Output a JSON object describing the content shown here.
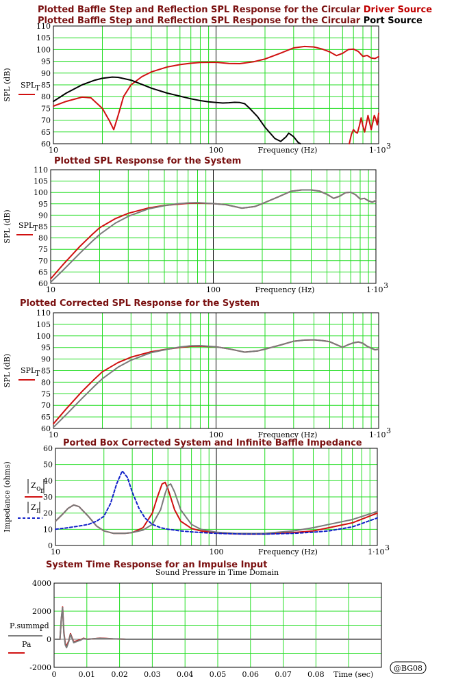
{
  "chart_data": [
    {
      "type": "line",
      "title_parts": [
        {
          "text": "Plotted Baffle Step and Reflection SPL Response for the Circular ",
          "color": "#7a1010"
        },
        {
          "text": "Driver Source",
          "color": "#c00000"
        }
      ],
      "title2_parts": [
        {
          "text": "Plotted Baffle Step and Reflection SPL Response for the Circular ",
          "color": "#7a1010"
        },
        {
          "text": "Port Source",
          "color": "#000000"
        }
      ],
      "xlabel": "Frequency (Hz)",
      "ylabel": "SPL (dB)",
      "legend_label": "SPL",
      "legend_sub": "T",
      "xscale": "log",
      "xlim": [
        10,
        1000
      ],
      "ylim": [
        60,
        110
      ],
      "yticks": [
        60,
        65,
        70,
        75,
        80,
        85,
        90,
        95,
        100,
        105,
        110
      ],
      "xtick_labels": [
        "10",
        "100",
        "1·10"
      ],
      "grid": true,
      "series": [
        {
          "color": "#d01010",
          "x": [
            10,
            12,
            15,
            17,
            20,
            22,
            23.5,
            25,
            27,
            30,
            35,
            40,
            50,
            60,
            70,
            80,
            100,
            120,
            140,
            170,
            200,
            250,
            300,
            350,
            400,
            450,
            500,
            550,
            600,
            650,
            700,
            750,
            800,
            850,
            900,
            950,
            1000
          ],
          "y": [
            76,
            78,
            79.8,
            79.5,
            75,
            70,
            66,
            72,
            80,
            85,
            88.5,
            90.5,
            92.6,
            93.6,
            94.2,
            94.5,
            94.6,
            94.1,
            94,
            94.8,
            96,
            98.5,
            100.7,
            101.3,
            101.1,
            100.2,
            99,
            97.4,
            98.4,
            100,
            100.2,
            99.2,
            97.1,
            97.5,
            96.4,
            96.2,
            97
          ]
        },
        {
          "color": "#000000",
          "x": [
            10,
            12,
            15,
            18,
            20,
            23,
            25,
            30,
            35,
            40,
            50,
            60,
            70,
            80,
            90,
            100,
            110,
            120,
            130,
            140,
            150,
            160,
            180,
            200,
            230,
            250,
            270,
            280,
            300,
            320,
            330
          ],
          "y": [
            78,
            81.5,
            85,
            87,
            87.8,
            88.3,
            88.2,
            87,
            85.2,
            83.6,
            81.5,
            80.2,
            79.1,
            78.3,
            77.8,
            77.5,
            77.3,
            77.4,
            77.6,
            77.5,
            77,
            75.2,
            71.5,
            67,
            62.2,
            61,
            63,
            64.5,
            63,
            60.5,
            60
          ]
        },
        {
          "color": "#d01010",
          "x": [
            660,
            680,
            700,
            720,
            740,
            760,
            780,
            800,
            820,
            840,
            860,
            880,
            900,
            920,
            940,
            960,
            980,
            1000
          ],
          "y": [
            60,
            64,
            66,
            65,
            64.5,
            67.5,
            71,
            67.5,
            65,
            68.5,
            72,
            69,
            66,
            69,
            72,
            70.5,
            68,
            73
          ]
        }
      ]
    },
    {
      "type": "line",
      "title": "Plotted SPL Response for the System",
      "xlabel": "Frequency (Hz)",
      "ylabel": "SPL (dB)",
      "legend_label": "SPL",
      "legend_sub": "T",
      "xscale": "log",
      "xlim": [
        10,
        1000
      ],
      "ylim": [
        60,
        110
      ],
      "yticks": [
        60,
        65,
        70,
        75,
        80,
        85,
        90,
        95,
        100,
        105,
        110
      ],
      "xtick_labels": [
        "10",
        "100",
        "1·10"
      ],
      "grid": true,
      "series": [
        {
          "color": "#d01010",
          "x": [
            10,
            12,
            15,
            18,
            20,
            25,
            30,
            40,
            50,
            60,
            70,
            80,
            100,
            120,
            150,
            180,
            200,
            250,
            300,
            350,
            400,
            450,
            500,
            550,
            600,
            650,
            700,
            750,
            800,
            850,
            900,
            950,
            1000
          ],
          "y": [
            62,
            68.5,
            76,
            81.5,
            84.5,
            88.5,
            90.8,
            93.2,
            94.3,
            94.8,
            95.2,
            95.3,
            95.1,
            94.6,
            93.1,
            93.8,
            95.1,
            98,
            100.5,
            101.1,
            101.1,
            100.6,
            99.2,
            97.4,
            98.4,
            99.9,
            100.1,
            99,
            97.1,
            97.4,
            96.3,
            95.7,
            96.5
          ]
        },
        {
          "color": "#7a7a7a",
          "x": [
            10,
            12,
            15,
            18,
            20,
            25,
            30,
            40,
            50,
            60,
            70,
            80,
            100,
            120,
            150,
            180,
            200,
            250,
            300,
            350,
            400,
            450,
            500,
            550,
            600,
            650,
            700,
            750,
            800,
            850,
            900,
            950,
            1000
          ],
          "y": [
            60.5,
            66,
            73,
            78.5,
            81.5,
            86.5,
            89.5,
            92.8,
            94.2,
            95,
            95.4,
            95.5,
            95.1,
            94.6,
            93.1,
            93.8,
            95.1,
            98,
            100.5,
            101.1,
            101.1,
            100.6,
            99.2,
            97.4,
            98.4,
            99.9,
            100.1,
            99,
            97.1,
            97.4,
            96.3,
            95.7,
            96.5
          ]
        }
      ]
    },
    {
      "type": "line",
      "title": "Plotted Corrected SPL Response for the System",
      "xlabel": "Frequency (Hz)",
      "ylabel": "SPL (dB)",
      "legend_label": "SPL",
      "legend_sub": "T",
      "xscale": "log",
      "xlim": [
        10,
        1000
      ],
      "ylim": [
        60,
        110
      ],
      "yticks": [
        60,
        65,
        70,
        75,
        80,
        85,
        90,
        95,
        100,
        105,
        110
      ],
      "xtick_labels": [
        "10",
        "100",
        "1·10"
      ],
      "grid": true,
      "series": [
        {
          "color": "#d01010",
          "x": [
            10,
            12,
            15,
            18,
            20,
            25,
            30,
            40,
            50,
            60,
            70,
            80,
            100,
            120,
            150,
            180,
            200,
            250,
            300,
            350,
            400,
            450,
            500,
            550,
            600,
            650,
            700,
            750,
            800,
            850,
            900,
            950,
            1000
          ],
          "y": [
            62,
            68.5,
            76,
            81.5,
            84.5,
            88.5,
            90.8,
            93.2,
            94.3,
            95,
            95.5,
            95.6,
            95.3,
            94.4,
            93,
            93.5,
            94.3,
            96.1,
            97.7,
            98.2,
            98.3,
            98,
            97.5,
            96.2,
            95.1,
            96.2,
            97,
            97.4,
            96.8,
            95.5,
            94.7,
            94,
            94.3
          ]
        },
        {
          "color": "#7a7a7a",
          "x": [
            10,
            12,
            15,
            18,
            20,
            25,
            30,
            40,
            50,
            60,
            70,
            80,
            100,
            120,
            150,
            180,
            200,
            250,
            300,
            350,
            400,
            450,
            500,
            550,
            600,
            650,
            700,
            750,
            800,
            850,
            900,
            950,
            1000
          ],
          "y": [
            60.5,
            66,
            73,
            78.5,
            81.5,
            86.5,
            89.5,
            92.8,
            94.2,
            95.2,
            95.7,
            95.8,
            95.3,
            94.4,
            93,
            93.5,
            94.3,
            96.1,
            97.7,
            98.2,
            98.3,
            98,
            97.5,
            96.2,
            95.1,
            96.2,
            97,
            97.4,
            96.8,
            95.5,
            94.7,
            94,
            94.3
          ]
        }
      ]
    },
    {
      "type": "line",
      "title": "Ported Box Corrected System and Infinite Baffle Impedance",
      "xlabel": "Frequency (Hz)",
      "ylabel": "Impedance (ohms)",
      "legend_top": "|Z",
      "legend_top_sub": "o",
      "legend_top_sub2": "r",
      "legend_bottom": "|Z",
      "legend_bottom_sub": "r",
      "xscale": "log",
      "xlim": [
        10,
        1000
      ],
      "ylim": [
        0,
        60
      ],
      "yticks": [
        0,
        10,
        20,
        30,
        40,
        50,
        60
      ],
      "xtick_labels": [
        "10",
        "100",
        "1·10"
      ],
      "grid": true,
      "series": [
        {
          "color": "#d01010",
          "dash": false,
          "x": [
            10,
            11,
            12,
            13,
            14,
            16,
            18,
            20,
            23,
            27,
            30,
            35,
            40,
            43,
            46,
            48,
            50,
            55,
            60,
            70,
            80,
            100,
            130,
            170,
            200,
            300,
            400,
            500,
            700,
            1000
          ],
          "y": [
            15,
            19,
            23,
            25,
            24,
            18,
            12,
            9,
            7.5,
            7.5,
            8,
            11,
            20,
            30,
            38,
            39,
            35,
            22,
            15,
            10.5,
            9,
            7.8,
            7.2,
            7,
            7.1,
            8,
            9,
            11,
            14,
            20
          ]
        },
        {
          "color": "#7a7a7a",
          "dash": false,
          "x": [
            10,
            11,
            12,
            13,
            14,
            16,
            18,
            20,
            23,
            27,
            30,
            35,
            40,
            45,
            48,
            50,
            52,
            55,
            60,
            70,
            80,
            100,
            130,
            170,
            200,
            300,
            400,
            500,
            700,
            1000
          ],
          "y": [
            15,
            19,
            23,
            25,
            24,
            18,
            12,
            9,
            7.5,
            7.5,
            8,
            9.5,
            13,
            22,
            32,
            37,
            38,
            33,
            22,
            13,
            10,
            8.2,
            7.5,
            7.4,
            7.5,
            9,
            11,
            13,
            16,
            21
          ]
        },
        {
          "color": "#1020c8",
          "dash": true,
          "x": [
            10,
            12,
            14,
            16,
            18,
            20,
            22,
            24,
            26,
            28,
            30,
            33,
            36,
            40,
            45,
            50,
            60,
            70,
            80,
            100,
            150,
            200,
            300,
            400,
            500,
            700,
            1000
          ],
          "y": [
            10,
            11,
            12,
            13,
            15,
            18,
            26,
            38,
            46,
            42,
            33,
            23,
            17,
            13,
            11,
            10,
            9,
            8.4,
            8,
            7.5,
            7,
            7,
            7.5,
            8.2,
            9,
            11.5,
            17
          ]
        }
      ]
    },
    {
      "type": "line",
      "title": "System Time Response for an Impulse Input",
      "subtitle": "Sound Pressure in Time Domain",
      "xlabel": "Time (sec)",
      "legend_top": "P",
      "legend_top_sub": "summed",
      "legend_top_sub2": "r",
      "legend_bottom": "Pa",
      "xscale": "linear",
      "xlim": [
        0,
        0.1
      ],
      "ylim": [
        -2000,
        4000
      ],
      "yticks": [
        -2000,
        0,
        2000,
        4000
      ],
      "xticks": [
        0,
        0.01,
        0.02,
        0.03,
        0.04,
        0.05,
        0.06,
        0.07,
        0.08
      ],
      "xtick_labels": [
        "0",
        "0.01",
        "0.02",
        "0.03",
        "0.04",
        "0.05",
        "0.06",
        "0.07",
        "0.08"
      ],
      "xlabel_tick": "Time (sec)",
      "grid": true,
      "series": [
        {
          "color": "#d01010",
          "x": [
            0,
            0.0018,
            0.0022,
            0.0026,
            0.003,
            0.0034,
            0.0038,
            0.0045,
            0.005,
            0.006,
            0.007,
            0.008,
            0.009,
            0.01,
            0.012,
            0.014,
            0.016,
            0.018,
            0.02,
            0.022,
            0.03,
            0.05,
            0.08,
            0.1
          ],
          "y": [
            0,
            0,
            1400,
            2300,
            500,
            -300,
            -500,
            -100,
            400,
            -200,
            -100,
            -50,
            80,
            0,
            40,
            80,
            60,
            30,
            20,
            0,
            0,
            0,
            0,
            0
          ]
        },
        {
          "color": "#7a7a7a",
          "x": [
            0,
            0.0018,
            0.0022,
            0.0026,
            0.003,
            0.0034,
            0.0038,
            0.0045,
            0.005,
            0.006,
            0.007,
            0.008,
            0.009,
            0.01,
            0.012,
            0.014,
            0.016,
            0.018,
            0.02,
            0.022,
            0.03,
            0.05,
            0.08,
            0.1
          ],
          "y": [
            0,
            0,
            1500,
            2250,
            400,
            -400,
            -600,
            -150,
            350,
            -250,
            -150,
            -80,
            60,
            0,
            40,
            70,
            50,
            30,
            20,
            0,
            0,
            0,
            0,
            0
          ]
        }
      ]
    }
  ],
  "stamp": "@BG08"
}
